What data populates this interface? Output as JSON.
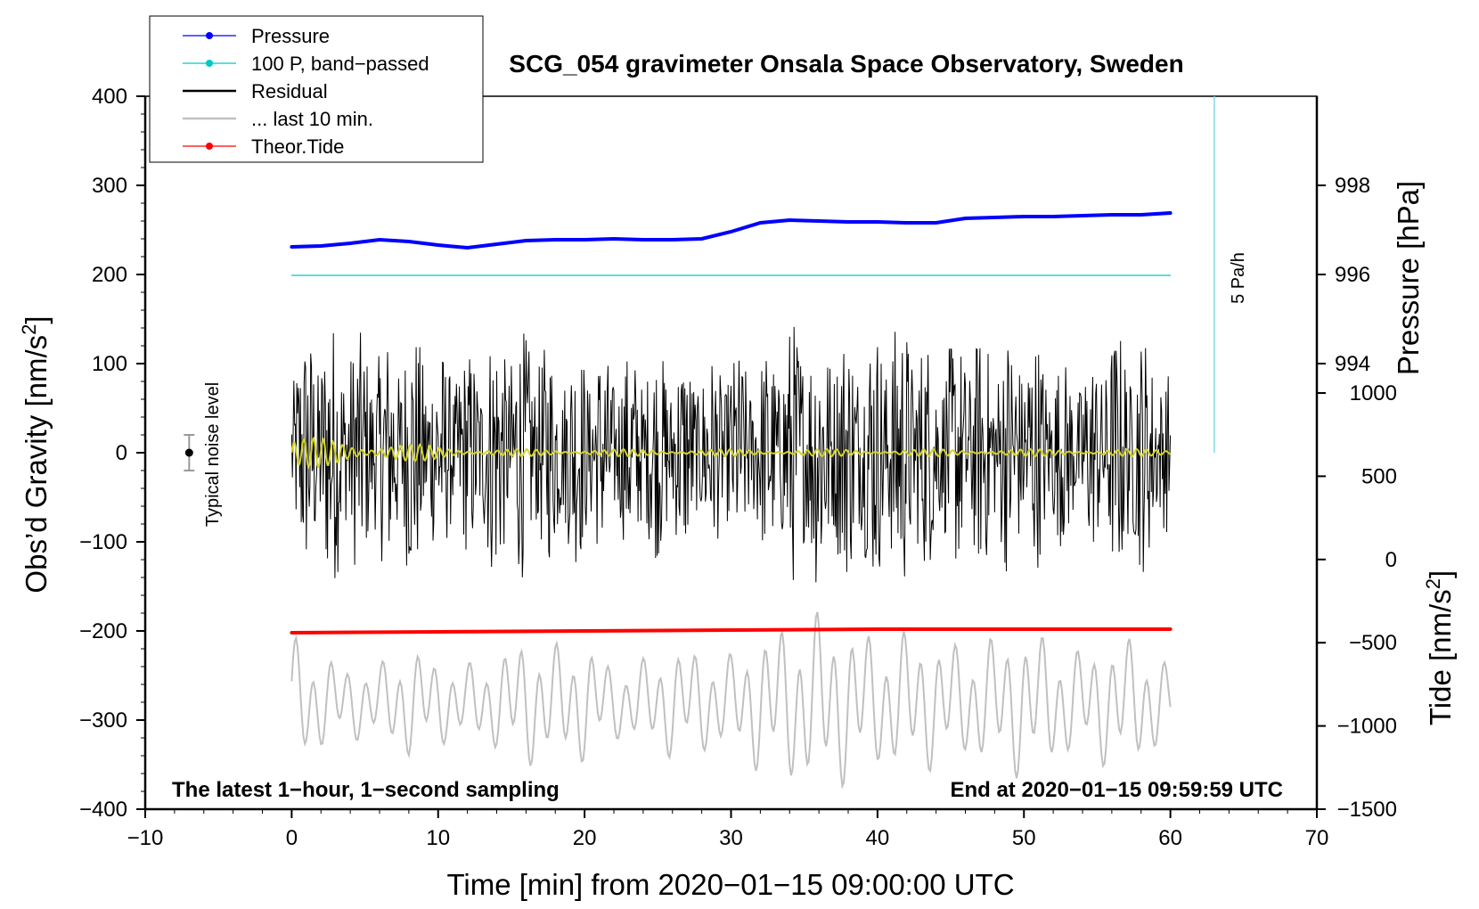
{
  "chart_data": {
    "type": "line",
    "title": "SCG_054 gravimeter Onsala Space Observatory, Sweden",
    "xlabel": "Time [min] from 2020−01−15 09:00:00 UTC",
    "ylabel_left": "Obs’d Gravity [nm/s",
    "ylabel_left_sup": "2",
    "ylabel_left_close": "]",
    "ylabel_right_pressure": "Pressure [hPa]",
    "ylabel_right_tide": "Tide [nm/s",
    "ylabel_right_tide_sup": "2",
    "ylabel_right_tide_close": "]",
    "xlim": [
      -10,
      70
    ],
    "ylim": [
      -400,
      400
    ],
    "x_ticks": [
      -10,
      0,
      10,
      20,
      30,
      40,
      50,
      60,
      70
    ],
    "x_tick_labels": [
      "−10",
      "0",
      "10",
      "20",
      "30",
      "40",
      "50",
      "60",
      "70"
    ],
    "y_ticks": [
      400,
      300,
      200,
      100,
      0,
      -100,
      -200,
      -300,
      -400
    ],
    "y_tick_labels": [
      "400",
      "300",
      "200",
      "100",
      "0",
      "−100",
      "−200",
      "−300",
      "−400"
    ],
    "pressure_ticks": [
      998,
      996,
      994
    ],
    "pressure_tick_labels": [
      "998",
      "996",
      "994"
    ],
    "pressure_axis_map": [
      [
        998,
        300
      ],
      [
        996,
        200
      ],
      [
        994,
        100
      ]
    ],
    "tide_ticks": [
      1000,
      500,
      0,
      -500,
      -1000,
      -1500
    ],
    "tide_tick_labels": [
      "1000",
      "500",
      "0",
      "−500",
      "−1000",
      "−1500"
    ],
    "tide_axis_map": [
      [
        1000,
        67
      ],
      [
        -1500,
        -400
      ]
    ],
    "annotations": {
      "bottom_left": "The latest 1−hour, 1−second sampling",
      "bottom_right": "End at 2020−01−15 09:59:59 UTC",
      "noise_label": "Typical noise level",
      "scale_label": "5 Pa/h"
    },
    "noise_bar": {
      "x": -7,
      "y": 0,
      "half_range": 20
    },
    "scale_bar": {
      "x": 63,
      "y_from": 0,
      "y_to": 400
    },
    "legend": [
      {
        "label": "Pressure",
        "color": "#0000ff",
        "marker": true
      },
      {
        "label": "100 P, band−passed",
        "color": "#00c8c8",
        "marker": true
      },
      {
        "label": "Residual",
        "color": "#000000",
        "marker": false
      },
      {
        "label": "... last 10 min.",
        "color": "#c0c0c0",
        "marker": false
      },
      {
        "label": "Theor.Tide",
        "color": "#ff0000",
        "marker": true
      }
    ],
    "series": [
      {
        "name": "Pressure",
        "color": "#0000ff",
        "x": [
          0,
          2,
          4,
          6,
          8,
          10,
          12,
          14,
          16,
          18,
          20,
          22,
          24,
          26,
          28,
          30,
          32,
          34,
          36,
          38,
          40,
          42,
          44,
          46,
          48,
          50,
          52,
          54,
          56,
          58,
          60
        ],
        "y": [
          231,
          232,
          235,
          239,
          237,
          233,
          230,
          234,
          238,
          239,
          239,
          240,
          239,
          239,
          240,
          248,
          258,
          261,
          260,
          259,
          259,
          258,
          258,
          263,
          264,
          265,
          265,
          266,
          267,
          267,
          269
        ]
      },
      {
        "name": "100 P, band−passed",
        "color": "#00c8c8",
        "x": [
          0,
          60
        ],
        "y": [
          199,
          199
        ]
      },
      {
        "name": "Theor.Tide",
        "color": "#ff0000",
        "x": [
          0,
          10,
          20,
          30,
          40,
          50,
          60
        ],
        "y": [
          -202,
          -201,
          -200,
          -199,
          -198,
          -198,
          -198
        ]
      }
    ],
    "residual_envelope": {
      "x": [
        0,
        2,
        4,
        6,
        8,
        10,
        12,
        14,
        16,
        18,
        20,
        22,
        24,
        26,
        28,
        30,
        32,
        34,
        36,
        38,
        40,
        42,
        44,
        46,
        48,
        50,
        52,
        54,
        56,
        58,
        60
      ],
      "amplitude": [
        120,
        160,
        140,
        130,
        150,
        120,
        115,
        150,
        140,
        120,
        130,
        110,
        120,
        120,
        110,
        115,
        110,
        150,
        160,
        140,
        150,
        160,
        120,
        140,
        130,
        150,
        110,
        100,
        140,
        140,
        90
      ]
    },
    "last10_envelope": {
      "x": [
        0,
        2,
        4,
        6,
        8,
        10,
        12,
        14,
        16,
        18,
        20,
        22,
        24,
        26,
        28,
        30,
        32,
        34,
        36,
        38,
        40,
        42,
        44,
        46,
        48,
        50,
        52,
        54,
        56,
        58,
        60
      ],
      "amplitude": [
        70,
        50,
        40,
        40,
        60,
        45,
        40,
        50,
        70,
        60,
        65,
        40,
        45,
        60,
        55,
        50,
        75,
        85,
        95,
        85,
        70,
        75,
        70,
        60,
        70,
        80,
        65,
        55,
        70,
        65,
        40
      ],
      "center": -280
    }
  }
}
